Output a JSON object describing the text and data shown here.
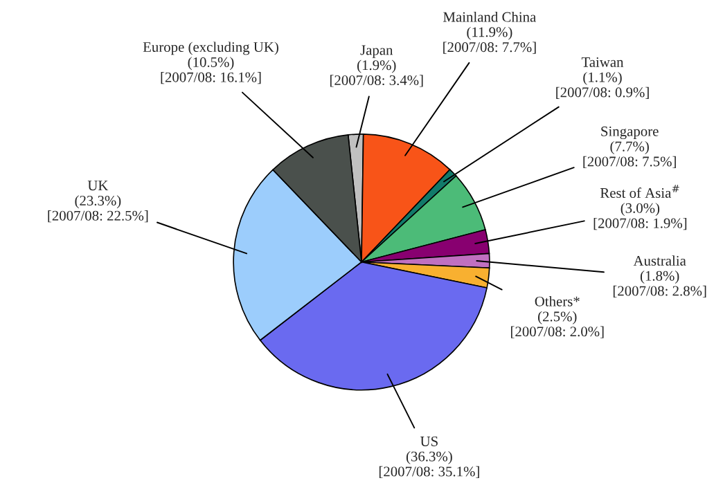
{
  "chart_data": {
    "type": "pie",
    "categories": [
      "Japan",
      "Mainland China",
      "Taiwan",
      "Singapore",
      "Rest of Asia$^{#}$",
      "Australia",
      "Others*",
      "US",
      "UK",
      "Europe (excluding UK)"
    ],
    "values": [
      1.9,
      11.9,
      1.1,
      7.7,
      3.0,
      1.8,
      2.5,
      36.3,
      23.3,
      10.5
    ],
    "value_labels": [
      "(1.9%)\n[2007/08: 3.4%]",
      "(11.9%)\n[2007/08: 7.7%]",
      "(1.1%)\n[2007/08: 0.9%]",
      "(7.7%)\n[2007/08: 7.5%]",
      "(3.0%)\n[2007/08: 1.9%]",
      "(1.8%)\n[2007/08: 2.8%]",
      "(2.5%)\n[2007/08: 2.0%]",
      "(36.3%)\n[2007/08: 35.1%]",
      "(23.3%)\n[2007/08: 22.5%]",
      "(10.5%)\n[2007/08: 16.1%]"
    ],
    "colors": [
      "#c0c0c0",
      "#f85418",
      "#127a6a",
      "#4cbb78",
      "#880070",
      "#c070c0",
      "#f8b030",
      "#6a6af0",
      "#9ccdfc",
      "#4a504c"
    ]
  }
}
